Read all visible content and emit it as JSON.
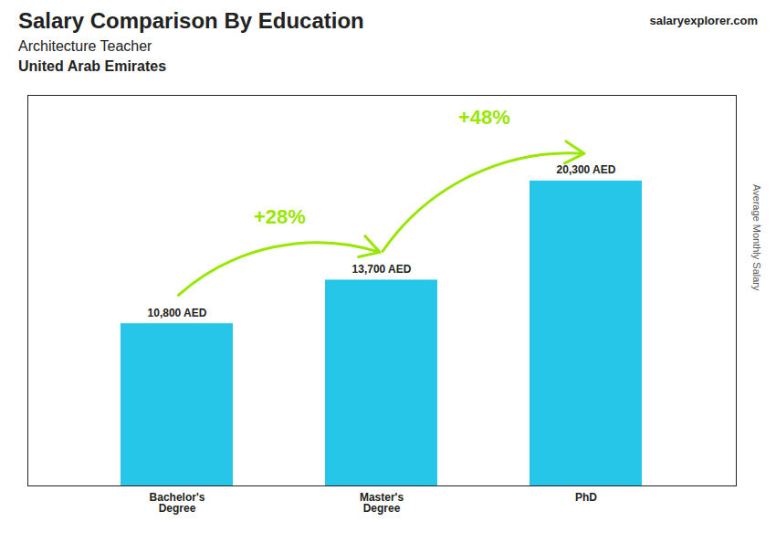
{
  "chart_data": {
    "type": "bar",
    "title": "Salary Comparison By Education",
    "subtitle": [
      "Architecture Teacher",
      "United Arab Emirates"
    ],
    "ylabel": "Average Monthly Salary",
    "categories": [
      "Bachelor's\nDegree",
      "Master's\nDegree",
      "PhD"
    ],
    "values": [
      10800,
      13700,
      20300
    ],
    "value_labels": [
      "10,800 AED",
      "13,700 AED",
      "20,300 AED"
    ],
    "data_labels": true,
    "color": "#25c6e8",
    "ylim": [
      0,
      26000
    ],
    "yticks": [],
    "tick_labels": "x",
    "grid": false,
    "annotations": [
      {
        "text": "+28%",
        "from": "Bachelor's\nDegree",
        "to": "Master's\nDegree",
        "color": "#99e600"
      },
      {
        "text": "+48%",
        "from": "Master's\nDegree",
        "to": "PhD",
        "color": "#99e600"
      },
      {
        "text": [
          "salary",
          "explorer",
          ".com"
        ]
      }
    ]
  }
}
